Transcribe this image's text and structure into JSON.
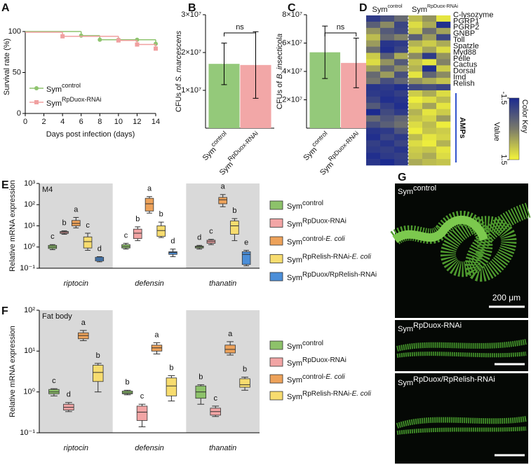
{
  "chart_data": [
    {
      "panel": "A",
      "type": "survival",
      "xlabel": "Days post infection (days)",
      "ylabel": "Survival rate (%)",
      "xlim": [
        0,
        14
      ],
      "xticks": [
        0,
        2,
        4,
        6,
        8,
        10,
        12,
        14
      ],
      "ylim": [
        0,
        100
      ],
      "yticks": [
        0,
        50,
        100
      ],
      "legend": "lower left",
      "series": [
        {
          "name": "Sym",
          "superscript": "control",
          "color": "#8fc46f",
          "x": [
            0,
            6,
            8,
            10,
            12,
            14
          ],
          "values": [
            100,
            95,
            90,
            90,
            90,
            85
          ]
        },
        {
          "name": "Sym",
          "superscript": "RpDuox-RNAi",
          "color": "#f0a0a0",
          "x": [
            0,
            4,
            10,
            12,
            14
          ],
          "values": [
            100,
            95,
            90,
            85,
            80
          ]
        }
      ]
    },
    {
      "panel": "B",
      "type": "bar",
      "ylabel": "CFUs of",
      "ylabel_italic": "S. marcescens",
      "categories": [
        "Sym",
        "Sym"
      ],
      "category_superscripts": [
        "control",
        "RpDuox-RNAi"
      ],
      "values": [
        17000000,
        16700000
      ],
      "errors": [
        5500000,
        8800000
      ],
      "colors": [
        "#94c97a",
        "#f2a7a7"
      ],
      "ylim": [
        0,
        30000000
      ],
      "yticks": [
        {
          "value": 10000000,
          "label": "1×10⁷"
        },
        {
          "value": 20000000,
          "label": "2×10⁷"
        },
        {
          "value": 30000000,
          "label": "3×10⁷"
        }
      ],
      "annotation": "ns"
    },
    {
      "panel": "C",
      "type": "bar",
      "ylabel": "CFUs of",
      "ylabel_italic": "B. insecticola",
      "categories": [
        "Sym",
        "Sym"
      ],
      "category_superscripts": [
        "control",
        "RpDuox-RNAi"
      ],
      "values": [
        53500000,
        46000000
      ],
      "errors": [
        18500000,
        17500000
      ],
      "colors": [
        "#94c97a",
        "#f2a7a7"
      ],
      "ylim": [
        0,
        80000000
      ],
      "yticks": [
        {
          "value": 20000000,
          "label": "2×10⁷"
        },
        {
          "value": 40000000,
          "label": "4×10⁷"
        },
        {
          "value": 60000000,
          "label": "6×10⁷"
        },
        {
          "value": 80000000,
          "label": "8×10⁷"
        }
      ],
      "annotation": "ns"
    },
    {
      "panel": "D",
      "type": "heatmap",
      "headers": [
        {
          "name": "Sym",
          "superscript": "control"
        },
        {
          "name": "Sym",
          "superscript": "RpDuox-RNAi"
        }
      ],
      "rows": [
        "C-lysozyme",
        "PGRP1",
        "PGRP2",
        "GNBP",
        "Toll",
        "Spatzle",
        "Myd88",
        "Pelle",
        "Cactus",
        "Dorsal",
        "Imd",
        "Relish",
        null,
        null,
        null,
        null,
        null,
        null,
        null,
        null,
        null,
        null,
        null,
        null
      ],
      "group_label": "AMPs",
      "values": [
        [
          -1.2,
          -0.8,
          -0.3,
          0.8,
          0.3,
          1.3
        ],
        [
          -0.5,
          0.2,
          -1.0,
          1.2,
          0.6,
          -1.4
        ],
        [
          0.3,
          -0.6,
          -0.9,
          0.9,
          -0.2,
          0.5
        ],
        [
          0.8,
          -0.3,
          0.1,
          -0.5,
          0.4,
          -1.0
        ],
        [
          0.4,
          -1.3,
          -1.2,
          0.7,
          1.0,
          0.6
        ],
        [
          -0.2,
          -1.4,
          -1.0,
          1.1,
          0.5,
          1.2
        ],
        [
          1.0,
          -0.5,
          0.6,
          0.2,
          -1.2,
          0.3
        ],
        [
          1.2,
          0.3,
          -0.6,
          0.9,
          1.3,
          0.1
        ],
        [
          0.5,
          -0.4,
          0.2,
          0.7,
          -1.4,
          1.0
        ],
        [
          -0.3,
          0.4,
          -0.8,
          1.3,
          -0.4,
          0.2
        ],
        [
          -0.1,
          -0.8,
          -0.4,
          0.3,
          0.6,
          0.9
        ],
        [
          -1.3,
          -1.2,
          -1.4,
          -0.9,
          -0.8,
          -1.0
        ],
        [
          -1.2,
          -1.3,
          -1.1,
          1.0,
          0.6,
          1.2
        ],
        [
          -1.0,
          -1.4,
          -1.3,
          1.4,
          1.2,
          0.8
        ],
        [
          -0.6,
          -1.1,
          -1.4,
          1.1,
          0.5,
          1.3
        ],
        [
          -1.5,
          -0.9,
          -1.2,
          0.7,
          1.3,
          1.0
        ],
        [
          -0.3,
          -0.7,
          -0.4,
          0.9,
          1.1,
          0.4
        ],
        [
          -0.8,
          -0.5,
          -0.2,
          1.2,
          0.8,
          1.4
        ],
        [
          -1.3,
          -1.2,
          -0.7,
          1.4,
          0.9,
          1.0
        ],
        [
          -1.4,
          -1.0,
          -1.2,
          0.8,
          1.3,
          1.1
        ],
        [
          -1.1,
          -1.3,
          -1.0,
          1.2,
          1.4,
          0.7
        ],
        [
          -1.2,
          -1.1,
          -1.3,
          1.0,
          0.9,
          1.3
        ],
        [
          -1.4,
          -1.2,
          -1.1,
          0.9,
          0.6,
          1.2
        ],
        [
          -1.3,
          -1.5,
          -1.2,
          0.6,
          0.8,
          0.9
        ]
      ],
      "colors": [
        "#1b2a8f",
        "#7a7a6a",
        "#f5f53a"
      ],
      "clim": [
        -1.5,
        1.5
      ],
      "cticks": [
        -1.5,
        1.5
      ],
      "colorbar_title": "Color Key",
      "colorbar_label": "Value"
    },
    {
      "panel": "E",
      "type": "box",
      "title": "M4",
      "ylabel": "Relative mRNA expression",
      "log_y": true,
      "ylim": [
        0.1,
        1000
      ],
      "yticks": [
        {
          "value": 0.1,
          "label": "10⁻¹"
        },
        {
          "value": 1,
          "label": "10⁰"
        },
        {
          "value": 10,
          "label": "10¹"
        },
        {
          "value": 100,
          "label": "10²"
        },
        {
          "value": 1000,
          "label": "10³"
        }
      ],
      "groups": [
        "riptocin",
        "defensin",
        "thanatin"
      ],
      "series": [
        {
          "name": "Sym",
          "superscript": "control",
          "color": "#8dc26a",
          "values": [
            [
              0.75,
              0.85,
              1.0,
              1.2,
              1.3
            ],
            [
              0.8,
              0.9,
              1.05,
              1.3,
              1.5
            ],
            [
              0.8,
              0.9,
              1.0,
              1.1,
              1.2
            ]
          ],
          "letters": [
            "c",
            "c",
            "d"
          ]
        },
        {
          "name": "Sym",
          "superscript": "RpDuox-RNAi",
          "color": "#f2a5a5",
          "values": [
            [
              4.0,
              4.4,
              4.9,
              5.4,
              5.8
            ],
            [
              2.0,
              2.5,
              4.5,
              7,
              9
            ],
            [
              1.3,
              1.5,
              1.8,
              2.1,
              2.3
            ]
          ],
          "letters": [
            "b",
            "b",
            "c"
          ]
        },
        {
          "name": "Sym",
          "superscript": "control-",
          "superscript_italic": "E. coli",
          "color": "#eda25a",
          "values": [
            [
              8,
              10,
              13,
              18,
              25
            ],
            [
              40,
              50,
              110,
              200,
              240
            ],
            [
              80,
              110,
              170,
              220,
              300
            ]
          ],
          "letters": [
            "a",
            "a",
            "a"
          ]
        },
        {
          "name": "Sym",
          "superscript": "RpRelish-RNAi-",
          "superscript_italic": "E. coli",
          "color": "#f7dc6f",
          "values": [
            [
              0.7,
              0.9,
              1.8,
              3.0,
              4.5
            ],
            [
              2.8,
              3.2,
              6,
              10,
              15
            ],
            [
              2.0,
              4,
              10,
              17,
              22
            ]
          ],
          "letters": [
            "c",
            "b",
            "b"
          ]
        },
        {
          "name": "Sym",
          "superscript": "RpDuox/RpRelish-RNAi",
          "color": "#4b8ed8",
          "values": [
            [
              0.2,
              0.22,
              0.27,
              0.33,
              0.35
            ],
            [
              0.35,
              0.45,
              0.55,
              0.6,
              0.8
            ],
            [
              0.13,
              0.15,
              0.45,
              0.6,
              0.7
            ]
          ],
          "letters": [
            "d",
            "d",
            "e"
          ]
        }
      ]
    },
    {
      "panel": "F",
      "type": "box",
      "title": "Fat body",
      "ylabel": "Relative mRNA expression",
      "log_y": true,
      "ylim": [
        0.1,
        100
      ],
      "yticks": [
        {
          "value": 0.1,
          "label": "10⁻¹"
        },
        {
          "value": 1,
          "label": "10⁰"
        },
        {
          "value": 10,
          "label": "10¹"
        },
        {
          "value": 100,
          "label": "10²"
        }
      ],
      "groups": [
        "riptocin",
        "defensin",
        "thanatin"
      ],
      "series": [
        {
          "name": "Sym",
          "superscript": "control",
          "color": "#8dc26a",
          "values": [
            [
              0.8,
              0.9,
              1.0,
              1.15,
              1.2
            ],
            [
              0.85,
              0.9,
              0.95,
              1.05,
              1.1
            ],
            [
              0.5,
              0.7,
              1.0,
              1.4,
              1.5
            ]
          ],
          "letters": [
            "c",
            "b",
            "b"
          ]
        },
        {
          "name": "Sym",
          "superscript": "RpDuox-RNAi",
          "color": "#f2a5a5",
          "values": [
            [
              0.33,
              0.36,
              0.42,
              0.5,
              0.55
            ],
            [
              0.14,
              0.2,
              0.32,
              0.45,
              0.5
            ],
            [
              0.25,
              0.27,
              0.33,
              0.4,
              0.45
            ]
          ],
          "letters": [
            "d",
            "c",
            "c"
          ]
        },
        {
          "name": "Sym",
          "superscript": "control-",
          "superscript_italic": "E. coli",
          "color": "#eda25a",
          "values": [
            [
              18,
              20,
              24,
              28,
              32
            ],
            [
              8.5,
              10,
              12,
              14,
              16
            ],
            [
              8,
              9,
              11,
              14,
              17
            ]
          ],
          "letters": [
            "a",
            "a",
            "a"
          ]
        },
        {
          "name": "Sym",
          "superscript": "RpRelish-RNAi-",
          "superscript_italic": "E. coli",
          "color": "#f7dc6f",
          "values": [
            [
              1.0,
              1.8,
              3,
              4.5,
              5
            ],
            [
              0.6,
              0.8,
              1.4,
              2.2,
              2.5
            ],
            [
              1.1,
              1.3,
              1.5,
              2.1,
              2.3
            ]
          ],
          "letters": [
            "b",
            "b",
            "b"
          ]
        }
      ]
    }
  ],
  "figure_g": {
    "panel": "G",
    "labels": [
      {
        "name": "Sym",
        "superscript": "control"
      },
      {
        "name": "Sym",
        "superscript": "RpDuox-RNAi"
      },
      {
        "name": "Sym",
        "superscript": "RpDuox/RpRelish-RNAi"
      }
    ],
    "scale_bar": "200 μm"
  }
}
